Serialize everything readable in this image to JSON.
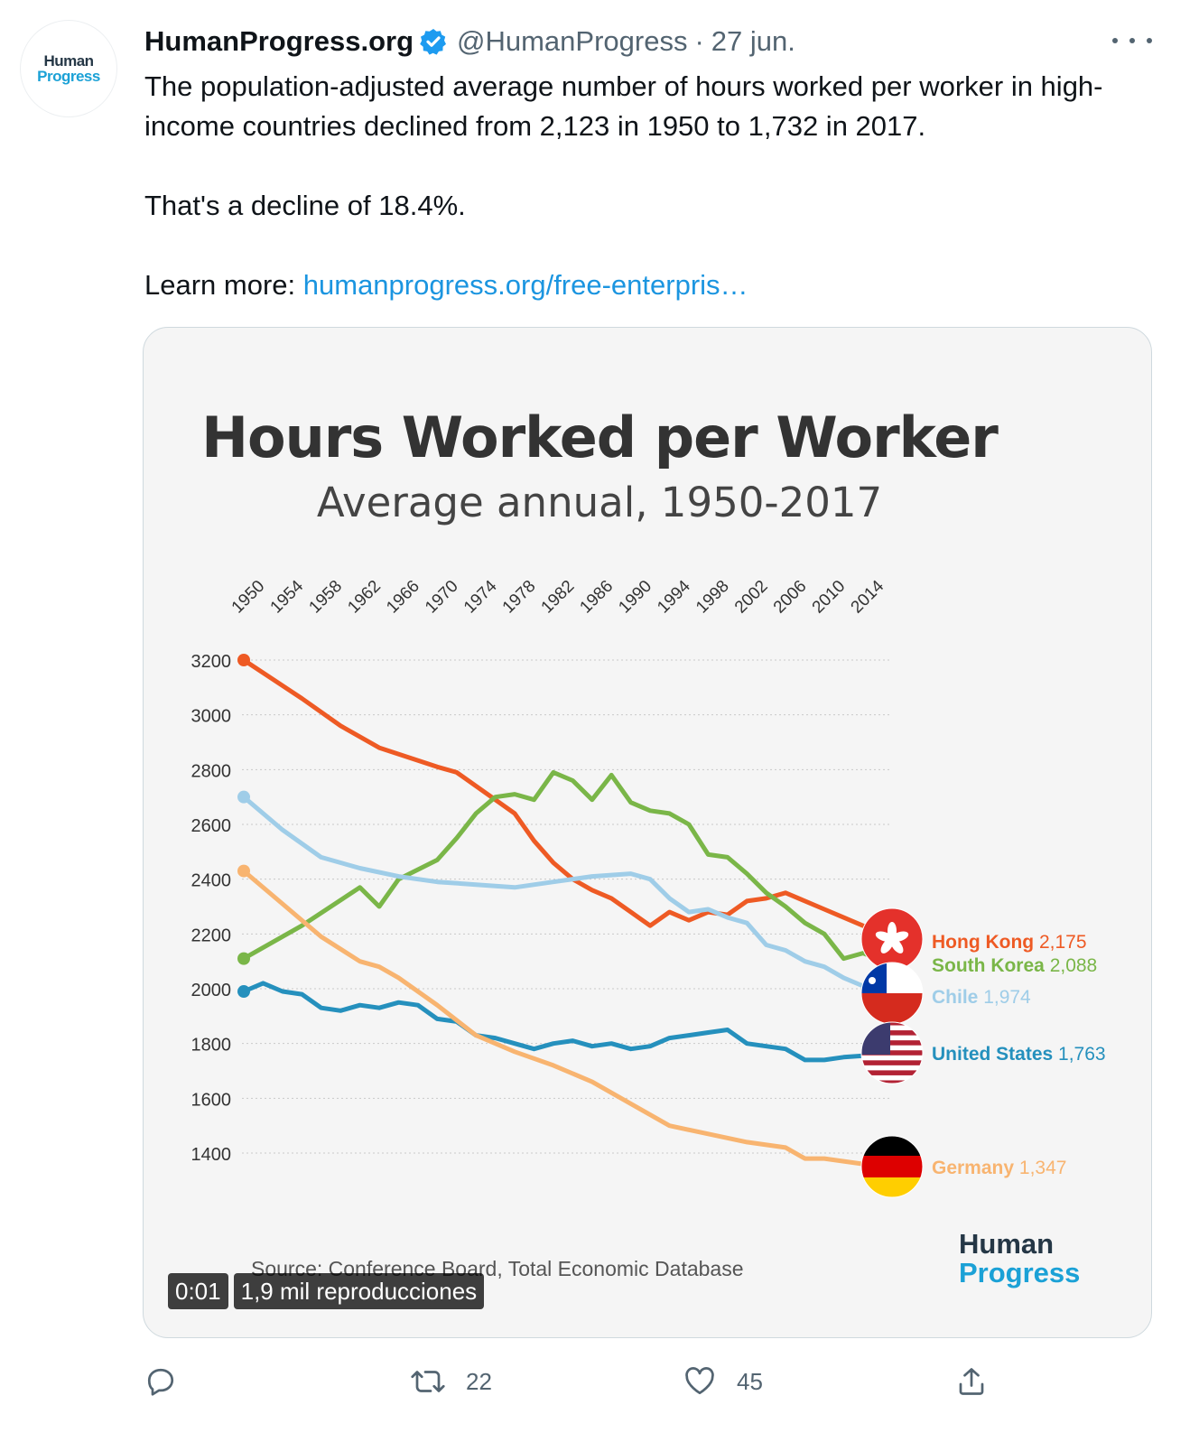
{
  "tweet": {
    "avatar": {
      "line1": "Human",
      "line2": "Progress"
    },
    "author_name": "HumanProgress.org",
    "handle": "@HumanProgress",
    "separator": "·",
    "date": "27 jun.",
    "text_line1": "The population-adjusted average number of hours worked per worker in high-income countries declined from 2,123 in 1950 to 1,732 in 2017.",
    "text_line2": "That's a decline of 18.4%.",
    "learn_more_label": "Learn more:",
    "link_text": "humanprogress.org/free-enterpris…"
  },
  "media": {
    "source": "Source: Conference Board, Total Economic Database",
    "logo_line1": "Human",
    "logo_line2": "Progress",
    "video_time": "0:01",
    "video_views": "1,9 mil reproducciones"
  },
  "actions": {
    "reply_count": "",
    "retweet_count": "22",
    "like_count": "45"
  },
  "icons": [
    "verified-badge-icon",
    "more-icon",
    "reply-icon",
    "retweet-icon",
    "like-icon",
    "share-icon",
    "hong-kong-flag-icon",
    "chile-flag-icon",
    "us-flag-icon",
    "germany-flag-icon"
  ],
  "colors": {
    "accent": "#1d9bf0",
    "hong_kong": "#ee5a24",
    "south_korea": "#7ab648",
    "chile": "#9fcde8",
    "united_states": "#2590bd",
    "germany": "#f8b470"
  },
  "chart_data": {
    "type": "line",
    "title": "Hours Worked per Worker",
    "subtitle": "Average annual, 1950-2017",
    "x_ticks": [
      "1950",
      "1954",
      "1958",
      "1962",
      "1966",
      "1970",
      "1974",
      "1978",
      "1982",
      "1986",
      "1990",
      "1994",
      "1998",
      "2002",
      "2006",
      "2010",
      "2014"
    ],
    "y_ticks": [
      "3200",
      "3000",
      "2800",
      "2600",
      "2400",
      "2200",
      "2000",
      "1800",
      "1600",
      "1400"
    ],
    "xlim": [
      1950,
      2017
    ],
    "ylim": [
      1300,
      3250
    ],
    "grid": true,
    "series": [
      {
        "name": "Hong Kong",
        "label": "Hong Kong",
        "end_value": "2,175",
        "color": "#ee5a24",
        "x": [
          1950,
          1956,
          1960,
          1964,
          1970,
          1972,
          1976,
          1978,
          1980,
          1982,
          1984,
          1986,
          1988,
          1990,
          1992,
          1994,
          1996,
          1998,
          2000,
          2002,
          2004,
          2006,
          2008,
          2010,
          2012,
          2014,
          2017
        ],
        "y": [
          3200,
          3060,
          2960,
          2880,
          2810,
          2790,
          2690,
          2640,
          2540,
          2460,
          2400,
          2360,
          2330,
          2280,
          2230,
          2280,
          2250,
          2280,
          2270,
          2320,
          2330,
          2350,
          2320,
          2290,
          2260,
          2230,
          2175
        ]
      },
      {
        "name": "South Korea",
        "label": "South Korea",
        "end_value": "2,088",
        "color": "#7ab648",
        "x": [
          1950,
          1956,
          1962,
          1964,
          1966,
          1970,
          1972,
          1974,
          1976,
          1978,
          1980,
          1982,
          1984,
          1986,
          1988,
          1990,
          1992,
          1994,
          1996,
          1998,
          2000,
          2002,
          2004,
          2006,
          2008,
          2010,
          2012,
          2014,
          2017
        ],
        "y": [
          2110,
          2230,
          2370,
          2300,
          2400,
          2470,
          2550,
          2640,
          2700,
          2710,
          2690,
          2790,
          2760,
          2690,
          2780,
          2680,
          2650,
          2640,
          2600,
          2490,
          2480,
          2420,
          2350,
          2300,
          2240,
          2200,
          2110,
          2130,
          2088
        ]
      },
      {
        "name": "Chile",
        "label": "Chile",
        "end_value": "1,974",
        "color": "#9fcde8",
        "x": [
          1950,
          1954,
          1958,
          1962,
          1966,
          1970,
          1974,
          1978,
          1982,
          1986,
          1990,
          1992,
          1994,
          1996,
          1998,
          2000,
          2002,
          2004,
          2006,
          2008,
          2010,
          2012,
          2014,
          2017
        ],
        "y": [
          2700,
          2580,
          2480,
          2440,
          2410,
          2390,
          2380,
          2370,
          2390,
          2410,
          2420,
          2400,
          2330,
          2280,
          2290,
          2260,
          2240,
          2160,
          2140,
          2100,
          2080,
          2040,
          2010,
          1974
        ]
      },
      {
        "name": "United States",
        "label": "United States",
        "end_value": "1,763",
        "color": "#2590bd",
        "x": [
          1950,
          1952,
          1954,
          1956,
          1958,
          1960,
          1962,
          1964,
          1966,
          1968,
          1970,
          1972,
          1974,
          1976,
          1978,
          1980,
          1982,
          1984,
          1986,
          1988,
          1990,
          1992,
          1994,
          1996,
          1998,
          2000,
          2002,
          2004,
          2006,
          2008,
          2010,
          2012,
          2014,
          2017
        ],
        "y": [
          1990,
          2020,
          1990,
          1980,
          1930,
          1920,
          1940,
          1930,
          1950,
          1940,
          1890,
          1880,
          1830,
          1820,
          1800,
          1780,
          1800,
          1810,
          1790,
          1800,
          1780,
          1790,
          1820,
          1830,
          1840,
          1850,
          1800,
          1790,
          1780,
          1740,
          1740,
          1750,
          1755,
          1763
        ]
      },
      {
        "name": "Germany",
        "label": "Germany",
        "end_value": "1,347",
        "color": "#f8b470",
        "x": [
          1950,
          1954,
          1958,
          1962,
          1964,
          1966,
          1970,
          1974,
          1978,
          1982,
          1986,
          1990,
          1994,
          1998,
          2002,
          2006,
          2008,
          2010,
          2012,
          2014,
          2017
        ],
        "y": [
          2430,
          2310,
          2190,
          2100,
          2080,
          2040,
          1940,
          1830,
          1770,
          1720,
          1660,
          1580,
          1500,
          1470,
          1440,
          1420,
          1380,
          1380,
          1370,
          1360,
          1347
        ]
      }
    ]
  }
}
